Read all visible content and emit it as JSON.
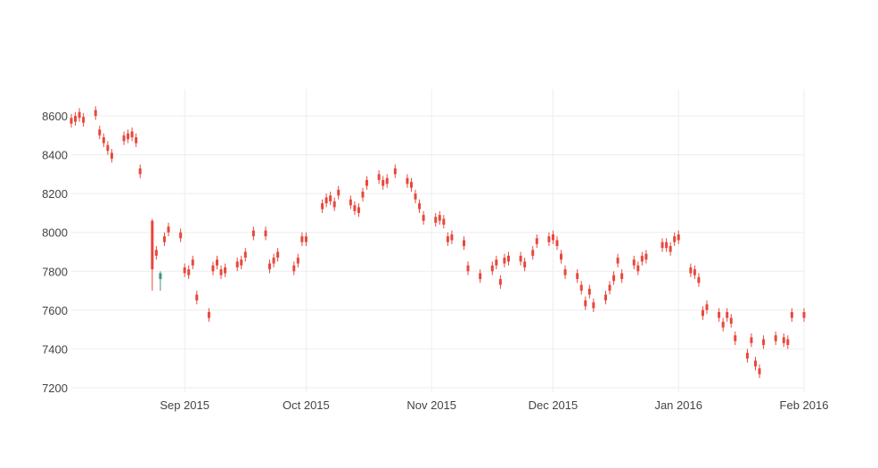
{
  "chart_data": {
    "type": "candlestick",
    "x": [
      "2015-08-04",
      "2015-08-05",
      "2015-08-06",
      "2015-08-07",
      "2015-08-10",
      "2015-08-11",
      "2015-08-12",
      "2015-08-13",
      "2015-08-14",
      "2015-08-17",
      "2015-08-18",
      "2015-08-19",
      "2015-08-20",
      "2015-08-21",
      "2015-08-24",
      "2015-08-25",
      "2015-08-26",
      "2015-08-27",
      "2015-08-28",
      "2015-08-31",
      "2015-09-01",
      "2015-09-02",
      "2015-09-03",
      "2015-09-04",
      "2015-09-07",
      "2015-09-08",
      "2015-09-09",
      "2015-09-10",
      "2015-09-11",
      "2015-09-14",
      "2015-09-15",
      "2015-09-16",
      "2015-09-18",
      "2015-09-21",
      "2015-09-22",
      "2015-09-23",
      "2015-09-24",
      "2015-09-28",
      "2015-09-29",
      "2015-09-30",
      "2015-10-01",
      "2015-10-05",
      "2015-10-06",
      "2015-10-07",
      "2015-10-08",
      "2015-10-09",
      "2015-10-12",
      "2015-10-13",
      "2015-10-14",
      "2015-10-15",
      "2015-10-16",
      "2015-10-19",
      "2015-10-20",
      "2015-10-21",
      "2015-10-23",
      "2015-10-26",
      "2015-10-27",
      "2015-10-28",
      "2015-10-29",
      "2015-10-30",
      "2015-11-02",
      "2015-11-03",
      "2015-11-04",
      "2015-11-05",
      "2015-11-06",
      "2015-11-09",
      "2015-11-10",
      "2015-11-13",
      "2015-11-16",
      "2015-11-17",
      "2015-11-18",
      "2015-11-19",
      "2015-11-20",
      "2015-11-23",
      "2015-11-24",
      "2015-11-26",
      "2015-11-27",
      "2015-11-30",
      "2015-12-01",
      "2015-12-02",
      "2015-12-03",
      "2015-12-04",
      "2015-12-07",
      "2015-12-08",
      "2015-12-09",
      "2015-12-10",
      "2015-12-11",
      "2015-12-14",
      "2015-12-15",
      "2015-12-16",
      "2015-12-17",
      "2015-12-18",
      "2015-12-21",
      "2015-12-22",
      "2015-12-23",
      "2015-12-24",
      "2015-12-28",
      "2015-12-29",
      "2015-12-30",
      "2015-12-31",
      "2016-01-01",
      "2016-01-04",
      "2016-01-05",
      "2016-01-06",
      "2016-01-07",
      "2016-01-08",
      "2016-01-11",
      "2016-01-12",
      "2016-01-13",
      "2016-01-14",
      "2016-01-15",
      "2016-01-18",
      "2016-01-19",
      "2016-01-20",
      "2016-01-21",
      "2016-01-22",
      "2016-01-25",
      "2016-01-27",
      "2016-01-28",
      "2016-01-29",
      "2016-02-01"
    ],
    "open": [
      8590,
      8600,
      8620,
      8595,
      8630,
      8530,
      8490,
      8450,
      8410,
      8500,
      8510,
      8520,
      8490,
      8330,
      8060,
      7910,
      7760,
      7980,
      8030,
      8000,
      7820,
      7810,
      7860,
      7680,
      7590,
      7830,
      7860,
      7810,
      7820,
      7850,
      7860,
      7900,
      8010,
      8010,
      7840,
      7870,
      7900,
      7830,
      7870,
      7980,
      7980,
      8150,
      8180,
      8190,
      8160,
      8220,
      8170,
      8140,
      8130,
      8210,
      8270,
      8300,
      8270,
      8280,
      8330,
      8280,
      8260,
      8200,
      8150,
      8090,
      8080,
      8090,
      8070,
      7980,
      7990,
      7960,
      7830,
      7790,
      7830,
      7860,
      7760,
      7870,
      7880,
      7880,
      7850,
      7910,
      7970,
      7980,
      7990,
      7960,
      7890,
      7810,
      7790,
      7730,
      7650,
      7710,
      7640,
      7680,
      7730,
      7780,
      7870,
      7790,
      7860,
      7830,
      7880,
      7890,
      7950,
      7950,
      7930,
      7980,
      7990,
      7820,
      7810,
      7770,
      7600,
      7630,
      7590,
      7540,
      7590,
      7560,
      7470,
      7380,
      7460,
      7340,
      7300,
      7450,
      7470,
      7460,
      7450,
      7590,
      7590
    ],
    "high": [
      8610,
      8620,
      8640,
      8615,
      8650,
      8550,
      8510,
      8470,
      8430,
      8520,
      8530,
      8540,
      8510,
      8350,
      8070,
      7930,
      7800,
      8000,
      8050,
      8020,
      7840,
      7830,
      7880,
      7700,
      7610,
      7850,
      7880,
      7830,
      7840,
      7870,
      7880,
      7920,
      8030,
      8030,
      7860,
      7890,
      7920,
      7850,
      7890,
      8000,
      8000,
      8170,
      8200,
      8210,
      8180,
      8240,
      8190,
      8160,
      8150,
      8230,
      8290,
      8320,
      8290,
      8300,
      8350,
      8300,
      8280,
      8220,
      8170,
      8110,
      8100,
      8110,
      8090,
      8000,
      8010,
      7980,
      7850,
      7810,
      7850,
      7880,
      7780,
      7890,
      7900,
      7900,
      7870,
      7930,
      7990,
      8000,
      8010,
      7980,
      7910,
      7830,
      7810,
      7750,
      7670,
      7730,
      7660,
      7700,
      7750,
      7800,
      7890,
      7810,
      7880,
      7850,
      7900,
      7910,
      7970,
      7970,
      7950,
      8000,
      8010,
      7840,
      7830,
      7790,
      7620,
      7650,
      7610,
      7560,
      7610,
      7580,
      7490,
      7400,
      7480,
      7360,
      7320,
      7470,
      7490,
      7480,
      7470,
      7610,
      7610
    ],
    "low": [
      8540,
      8550,
      8570,
      8545,
      8580,
      8480,
      8440,
      8400,
      8360,
      8450,
      8460,
      8470,
      8440,
      8280,
      7700,
      7860,
      7700,
      7930,
      7980,
      7950,
      7770,
      7760,
      7810,
      7630,
      7540,
      7780,
      7810,
      7760,
      7770,
      7800,
      7810,
      7850,
      7960,
      7960,
      7790,
      7820,
      7850,
      7780,
      7820,
      7930,
      7930,
      8100,
      8130,
      8140,
      8110,
      8170,
      8120,
      8090,
      8080,
      8160,
      8220,
      8250,
      8220,
      8230,
      8280,
      8230,
      8210,
      8150,
      8100,
      8040,
      8030,
      8040,
      8020,
      7930,
      7940,
      7910,
      7780,
      7740,
      7780,
      7810,
      7710,
      7820,
      7830,
      7830,
      7800,
      7860,
      7920,
      7930,
      7940,
      7910,
      7840,
      7760,
      7740,
      7680,
      7600,
      7660,
      7590,
      7630,
      7680,
      7730,
      7820,
      7740,
      7810,
      7780,
      7830,
      7840,
      7900,
      7900,
      7880,
      7930,
      7940,
      7770,
      7760,
      7720,
      7550,
      7580,
      7540,
      7490,
      7540,
      7510,
      7420,
      7330,
      7410,
      7290,
      7250,
      7400,
      7420,
      7410,
      7400,
      7540,
      7540
    ],
    "close": [
      8560,
      8570,
      8590,
      8565,
      8600,
      8500,
      8460,
      8420,
      8380,
      8470,
      8480,
      8490,
      8460,
      8300,
      7810,
      7880,
      7790,
      7950,
      8000,
      7970,
      7790,
      7780,
      7830,
      7650,
      7560,
      7800,
      7830,
      7780,
      7790,
      7820,
      7830,
      7870,
      7980,
      7980,
      7810,
      7840,
      7870,
      7800,
      7840,
      7950,
      7950,
      8120,
      8150,
      8160,
      8130,
      8190,
      8140,
      8110,
      8100,
      8180,
      8240,
      8270,
      8240,
      8250,
      8300,
      8250,
      8230,
      8170,
      8120,
      8060,
      8050,
      8060,
      8040,
      7950,
      7960,
      7930,
      7800,
      7760,
      7800,
      7830,
      7730,
      7840,
      7850,
      7850,
      7820,
      7880,
      7940,
      7950,
      7960,
      7930,
      7860,
      7780,
      7760,
      7700,
      7620,
      7680,
      7610,
      7650,
      7700,
      7750,
      7840,
      7760,
      7830,
      7800,
      7850,
      7860,
      7920,
      7920,
      7900,
      7950,
      7960,
      7790,
      7780,
      7740,
      7570,
      7600,
      7560,
      7510,
      7560,
      7530,
      7440,
      7350,
      7430,
      7310,
      7270,
      7420,
      7440,
      7430,
      7420,
      7560,
      7560
    ],
    "increasing_color": "#3d9970",
    "decreasing_color": "#e8483c",
    "xlim": [
      "2015-08-04",
      "2016-02-01"
    ],
    "xticks": [
      {
        "value": "2015-09-01",
        "label": "Sep 2015"
      },
      {
        "value": "2015-10-01",
        "label": "Oct 2015"
      },
      {
        "value": "2015-11-01",
        "label": "Nov 2015"
      },
      {
        "value": "2015-12-01",
        "label": "Dec 2015"
      },
      {
        "value": "2016-01-01",
        "label": "Jan 2016"
      },
      {
        "value": "2016-02-01",
        "label": "Feb 2016"
      }
    ],
    "ylim": [
      7177,
      8738
    ],
    "yticks": [
      7200,
      7400,
      7600,
      7800,
      8000,
      8200,
      8400,
      8600
    ],
    "grid": true
  }
}
